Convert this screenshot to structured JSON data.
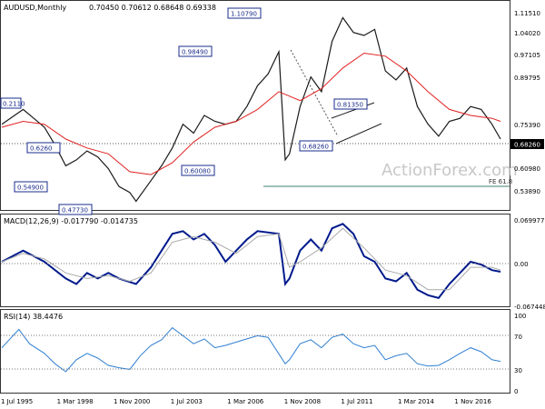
{
  "chart_data": [
    {
      "panel": "price",
      "type": "line",
      "title": "AUDUSD,Monthly",
      "ohlc": "0.70450 0.70612 0.68648 0.69338",
      "yticks": [
        "1.11510",
        "1.04020",
        "0.97105",
        "0.89795",
        "0.75390",
        "0.68260",
        "0.60980",
        "0.53890"
      ],
      "current_price_label": "0.68260",
      "annotations": [
        "1.10790",
        "0.98490",
        "0.81350",
        "0.68260",
        "0.60080",
        "0.47730",
        "0.54900",
        "0.2110",
        "0.6260"
      ],
      "fib_label": "FE 61.8",
      "watermark": "ActionForex.com",
      "series": [
        {
          "name": "price",
          "color": "#1a1a1a",
          "points": [
            [
              1995.5,
              0.74
            ],
            [
              1996.5,
              0.79
            ],
            [
              1997.0,
              0.76
            ],
            [
              1997.5,
              0.73
            ],
            [
              1998.0,
              0.67
            ],
            [
              1998.5,
              0.6
            ],
            [
              1999.0,
              0.62
            ],
            [
              1999.5,
              0.65
            ],
            [
              2000.0,
              0.63
            ],
            [
              2000.5,
              0.59
            ],
            [
              2001.0,
              0.53
            ],
            [
              2001.5,
              0.51
            ],
            [
              2001.8,
              0.48
            ],
            [
              2002.5,
              0.55
            ],
            [
              2003.0,
              0.6
            ],
            [
              2003.5,
              0.66
            ],
            [
              2004.0,
              0.74
            ],
            [
              2004.5,
              0.71
            ],
            [
              2005.0,
              0.77
            ],
            [
              2005.5,
              0.75
            ],
            [
              2006.0,
              0.74
            ],
            [
              2006.5,
              0.75
            ],
            [
              2007.0,
              0.8
            ],
            [
              2007.5,
              0.87
            ],
            [
              2008.0,
              0.91
            ],
            [
              2008.5,
              0.985
            ],
            [
              2008.8,
              0.62
            ],
            [
              2009.0,
              0.64
            ],
            [
              2009.5,
              0.8
            ],
            [
              2010.0,
              0.9
            ],
            [
              2010.5,
              0.85
            ],
            [
              2011.0,
              1.02
            ],
            [
              2011.5,
              1.1
            ],
            [
              2012.0,
              1.05
            ],
            [
              2012.5,
              1.04
            ],
            [
              2013.0,
              1.06
            ],
            [
              2013.5,
              0.92
            ],
            [
              2014.0,
              0.89
            ],
            [
              2014.5,
              0.93
            ],
            [
              2015.0,
              0.8
            ],
            [
              2015.5,
              0.74
            ],
            [
              2016.0,
              0.7
            ],
            [
              2016.5,
              0.75
            ],
            [
              2017.0,
              0.76
            ],
            [
              2017.5,
              0.8
            ],
            [
              2018.0,
              0.79
            ],
            [
              2018.5,
              0.74
            ],
            [
              2018.9,
              0.69
            ]
          ]
        },
        {
          "name": "ma",
          "color": "#e02020",
          "points": [
            [
              1995.5,
              0.73
            ],
            [
              1996.5,
              0.75
            ],
            [
              1997.5,
              0.74
            ],
            [
              1998.5,
              0.69
            ],
            [
              1999.5,
              0.66
            ],
            [
              2000.5,
              0.64
            ],
            [
              2001.5,
              0.58
            ],
            [
              2002.5,
              0.57
            ],
            [
              2003.5,
              0.61
            ],
            [
              2004.5,
              0.68
            ],
            [
              2005.5,
              0.73
            ],
            [
              2006.5,
              0.75
            ],
            [
              2007.5,
              0.79
            ],
            [
              2008.5,
              0.85
            ],
            [
              2009.5,
              0.82
            ],
            [
              2010.5,
              0.86
            ],
            [
              2011.5,
              0.93
            ],
            [
              2012.5,
              0.98
            ],
            [
              2013.5,
              0.97
            ],
            [
              2014.5,
              0.92
            ],
            [
              2015.5,
              0.85
            ],
            [
              2016.5,
              0.79
            ],
            [
              2017.5,
              0.77
            ],
            [
              2018.5,
              0.76
            ],
            [
              2018.9,
              0.75
            ]
          ]
        }
      ],
      "ylim": [
        0.46,
        1.135
      ],
      "xlim": [
        1995.5,
        2019.2
      ]
    },
    {
      "panel": "macd",
      "type": "line",
      "title": "MACD(12,26,9) -0.017790 -0.014735",
      "yticks": [
        "0.069977",
        "0.00",
        "-0.067448"
      ],
      "series": [
        {
          "name": "macd",
          "color": "#001a8c",
          "points": [
            [
              1995.5,
              0.0
            ],
            [
              1996.5,
              0.02
            ],
            [
              1997.5,
              0.0
            ],
            [
              1998.5,
              -0.03
            ],
            [
              1999.0,
              -0.04
            ],
            [
              1999.5,
              -0.02
            ],
            [
              2000.0,
              -0.03
            ],
            [
              2000.5,
              -0.02
            ],
            [
              2001.0,
              -0.03
            ],
            [
              2001.8,
              -0.04
            ],
            [
              2002.5,
              -0.01
            ],
            [
              2003.0,
              0.02
            ],
            [
              2003.5,
              0.05
            ],
            [
              2004.0,
              0.055
            ],
            [
              2004.5,
              0.04
            ],
            [
              2005.0,
              0.05
            ],
            [
              2005.5,
              0.03
            ],
            [
              2006.0,
              0.0
            ],
            [
              2006.5,
              0.02
            ],
            [
              2007.0,
              0.04
            ],
            [
              2007.5,
              0.055
            ],
            [
              2008.5,
              0.05
            ],
            [
              2008.8,
              -0.04
            ],
            [
              2009.0,
              -0.03
            ],
            [
              2009.5,
              0.02
            ],
            [
              2010.0,
              0.04
            ],
            [
              2010.5,
              0.02
            ],
            [
              2011.0,
              0.06
            ],
            [
              2011.5,
              0.068
            ],
            [
              2012.0,
              0.05
            ],
            [
              2012.5,
              0.01
            ],
            [
              2013.0,
              0.0
            ],
            [
              2013.5,
              -0.03
            ],
            [
              2014.0,
              -0.035
            ],
            [
              2014.5,
              -0.02
            ],
            [
              2015.0,
              -0.05
            ],
            [
              2015.5,
              -0.06
            ],
            [
              2016.0,
              -0.065
            ],
            [
              2016.5,
              -0.04
            ],
            [
              2017.0,
              -0.02
            ],
            [
              2017.5,
              0.0
            ],
            [
              2018.0,
              -0.005
            ],
            [
              2018.5,
              -0.015
            ],
            [
              2018.9,
              -0.018
            ]
          ]
        },
        {
          "name": "signal",
          "color": "#aaaaaa",
          "points": [
            [
              1995.5,
              0.0
            ],
            [
              1996.5,
              0.015
            ],
            [
              1997.5,
              0.005
            ],
            [
              1998.5,
              -0.02
            ],
            [
              1999.5,
              -0.03
            ],
            [
              2000.5,
              -0.025
            ],
            [
              2001.5,
              -0.035
            ],
            [
              2002.5,
              -0.02
            ],
            [
              2003.5,
              0.035
            ],
            [
              2004.5,
              0.045
            ],
            [
              2005.5,
              0.035
            ],
            [
              2006.5,
              0.015
            ],
            [
              2007.5,
              0.045
            ],
            [
              2008.5,
              0.05
            ],
            [
              2009.0,
              -0.01
            ],
            [
              2009.5,
              0.0
            ],
            [
              2010.5,
              0.025
            ],
            [
              2011.5,
              0.06
            ],
            [
              2012.5,
              0.025
            ],
            [
              2013.5,
              -0.015
            ],
            [
              2014.5,
              -0.025
            ],
            [
              2015.5,
              -0.05
            ],
            [
              2016.5,
              -0.05
            ],
            [
              2017.5,
              -0.01
            ],
            [
              2018.5,
              -0.01
            ],
            [
              2018.9,
              -0.015
            ]
          ]
        }
      ],
      "ylim": [
        -0.075,
        0.075
      ],
      "xlim": [
        1995.5,
        2019.2
      ]
    },
    {
      "panel": "rsi",
      "type": "line",
      "title": "RSI(14) 38.4476",
      "yticks": [
        "100",
        "70",
        "30",
        "0"
      ],
      "series": [
        {
          "name": "rsi",
          "color": "#2f7fd0",
          "points": [
            [
              1995.5,
              55
            ],
            [
              1996.3,
              78
            ],
            [
              1996.8,
              60
            ],
            [
              1997.5,
              48
            ],
            [
              1998.0,
              35
            ],
            [
              1998.5,
              25
            ],
            [
              1999.0,
              40
            ],
            [
              1999.5,
              48
            ],
            [
              2000.0,
              42
            ],
            [
              2000.5,
              33
            ],
            [
              2001.0,
              30
            ],
            [
              2001.5,
              28
            ],
            [
              2002.0,
              45
            ],
            [
              2002.5,
              58
            ],
            [
              2003.0,
              65
            ],
            [
              2003.5,
              80
            ],
            [
              2004.0,
              70
            ],
            [
              2004.5,
              60
            ],
            [
              2005.0,
              66
            ],
            [
              2005.5,
              55
            ],
            [
              2006.0,
              58
            ],
            [
              2006.5,
              62
            ],
            [
              2007.0,
              66
            ],
            [
              2007.5,
              70
            ],
            [
              2008.0,
              68
            ],
            [
              2008.8,
              35
            ],
            [
              2009.0,
              40
            ],
            [
              2009.5,
              60
            ],
            [
              2010.0,
              65
            ],
            [
              2010.5,
              55
            ],
            [
              2011.0,
              68
            ],
            [
              2011.5,
              72
            ],
            [
              2012.0,
              60
            ],
            [
              2012.5,
              55
            ],
            [
              2013.0,
              58
            ],
            [
              2013.5,
              40
            ],
            [
              2014.0,
              45
            ],
            [
              2014.5,
              48
            ],
            [
              2015.0,
              35
            ],
            [
              2015.5,
              32
            ],
            [
              2016.0,
              33
            ],
            [
              2016.5,
              40
            ],
            [
              2017.0,
              48
            ],
            [
              2017.5,
              55
            ],
            [
              2018.0,
              50
            ],
            [
              2018.5,
              40
            ],
            [
              2018.9,
              38
            ]
          ]
        }
      ],
      "ylim": [
        0,
        100
      ],
      "xlim": [
        1995.5,
        2019.2
      ]
    }
  ],
  "xaxis": {
    "labels": [
      "1 Jul 1995",
      "1 Mar 1998",
      "1 Nov 2000",
      "1 Jul 2003",
      "1 Mar 2006",
      "1 Nov 2008",
      "1 Jul 2011",
      "1 Mar 2014",
      "1 Nov 2016"
    ],
    "values": [
      1995.5,
      1998.17,
      2000.83,
      2003.5,
      2006.17,
      2008.83,
      2011.5,
      2014.17,
      2016.83
    ]
  },
  "colors": {
    "frame": "#333333",
    "grid": "#cfcfcf",
    "fib": "#3f7f6f",
    "annot_border": "#1a2c8c",
    "annot_text": "#1a2c8c",
    "watermark": "#c8c8c8"
  }
}
